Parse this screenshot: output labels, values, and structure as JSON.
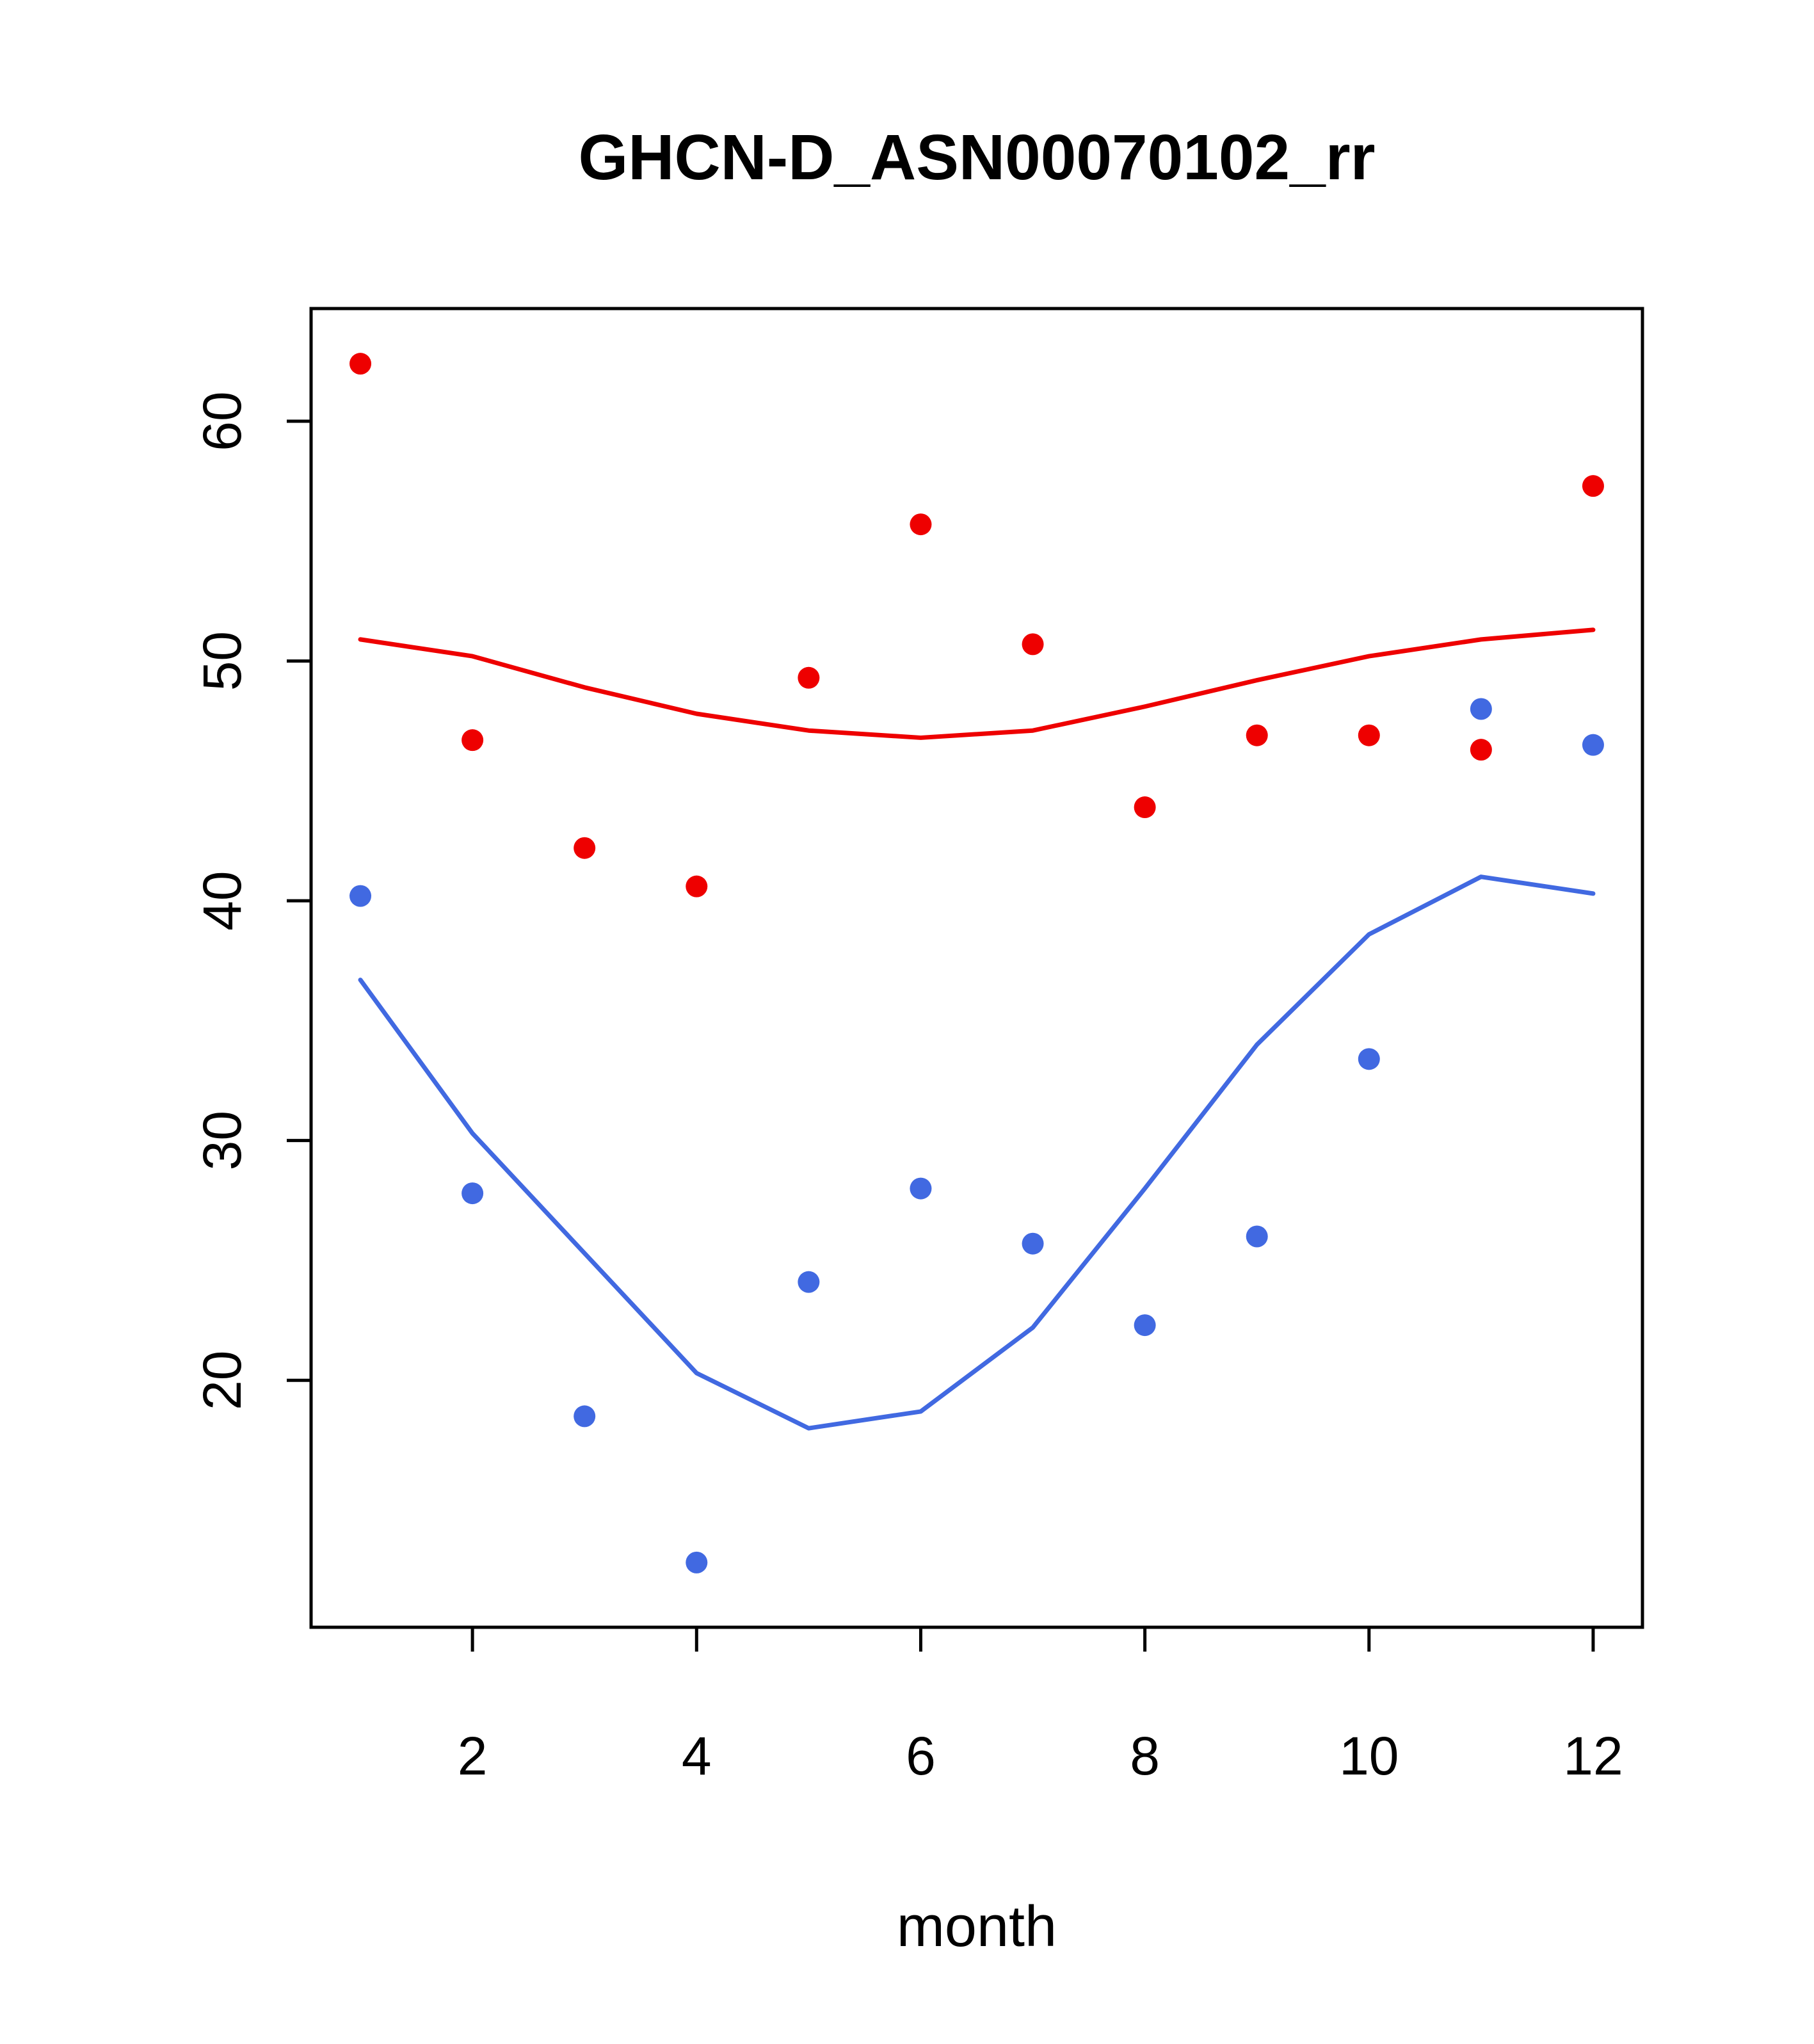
{
  "chart_data": {
    "type": "scatter",
    "title": "GHCN-D_ASN00070102_rr",
    "xlabel": "month",
    "ylabel": "",
    "x": [
      1,
      2,
      3,
      4,
      5,
      6,
      7,
      8,
      9,
      10,
      11,
      12
    ],
    "series": [
      {
        "name": "red-monthly-points",
        "kind": "points",
        "color": "#ee0000",
        "values": [
          62.4,
          46.7,
          42.2,
          40.6,
          49.3,
          55.7,
          50.7,
          43.9,
          46.9,
          46.9,
          46.3,
          57.3
        ]
      },
      {
        "name": "blue-monthly-points",
        "kind": "points",
        "color": "#4169e1",
        "values": [
          40.2,
          27.8,
          18.5,
          12.4,
          24.1,
          28.0,
          25.7,
          22.3,
          26.0,
          33.4,
          48.0,
          46.5
        ]
      },
      {
        "name": "red-smooth-line",
        "kind": "line",
        "color": "#ee0000",
        "values": [
          50.9,
          50.2,
          48.9,
          47.8,
          47.1,
          46.8,
          47.1,
          48.1,
          49.2,
          50.2,
          50.9,
          51.3
        ]
      },
      {
        "name": "blue-smooth-line",
        "kind": "line",
        "color": "#4169e1",
        "values": [
          36.7,
          30.3,
          25.3,
          20.3,
          18.0,
          18.7,
          22.2,
          28.0,
          34.0,
          38.6,
          41.0,
          40.3
        ]
      }
    ],
    "xticks": [
      2,
      4,
      6,
      8,
      10,
      12
    ],
    "yticks": [
      20,
      30,
      40,
      50,
      60
    ],
    "xlim": [
      0.56,
      12.44
    ],
    "ylim": [
      9.7,
      64.7
    ],
    "grid": false,
    "legend": "none"
  },
  "colors": {
    "axis": "#000000",
    "background": "#ffffff"
  }
}
